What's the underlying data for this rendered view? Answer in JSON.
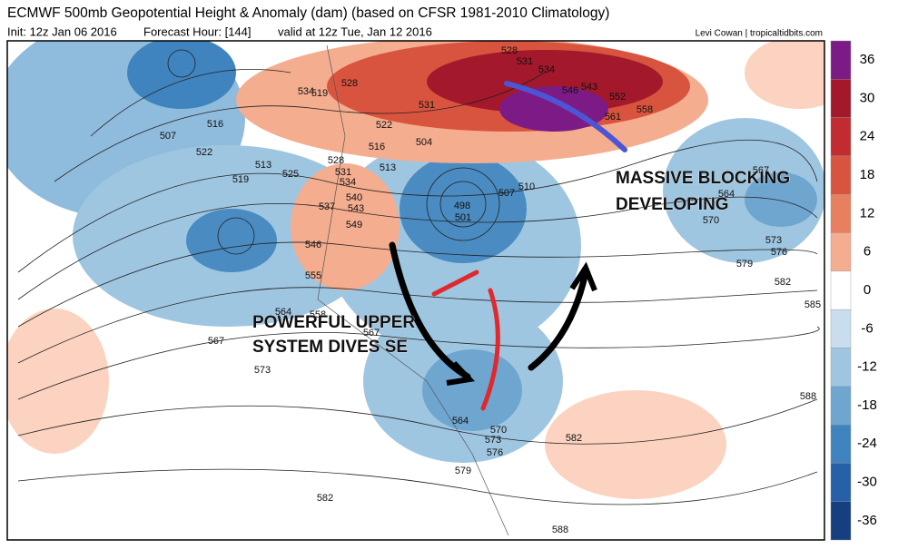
{
  "header": {
    "title": "ECMWF 500mb Geopotential Height & Anomaly (dam) (based on CFSR 1981-2010 Climatology)",
    "init": "Init: 12z Jan 06 2016",
    "forecast_hour": "Forecast Hour: [144]",
    "valid": "valid at 12z Tue, Jan 12 2016",
    "credit": "Levi Cowan | tropicaltidbits.com"
  },
  "colorbar": {
    "ticks": [
      36,
      30,
      24,
      18,
      12,
      6,
      0,
      -6,
      -12,
      -18,
      -24,
      -30,
      -36
    ],
    "colors": [
      "#7d1b86",
      "#a3182b",
      "#c22c30",
      "#d9543f",
      "#e8805f",
      "#f4ad8f",
      "#ffffff",
      "#c9ddee",
      "#9fc6e1",
      "#6ea6d0",
      "#3f84be",
      "#2660a6",
      "#163f80"
    ]
  },
  "annotations": {
    "upper_1": "POWERFUL UPPER",
    "upper_2": "SYSTEM DIVES SE",
    "block_1": "MASSIVE BLOCKING",
    "block_2": "DEVELOPING"
  },
  "contour_labels": [
    "534",
    "519",
    "528",
    "516",
    "507",
    "522",
    "519",
    "525",
    "513",
    "528",
    "531",
    "534",
    "540",
    "543",
    "537",
    "546",
    "549",
    "555",
    "564",
    "558",
    "567",
    "573",
    "567",
    "516",
    "522",
    "531",
    "504",
    "513",
    "498",
    "501",
    "507",
    "510",
    "528",
    "531",
    "534",
    "543",
    "546",
    "552",
    "561",
    "558",
    "567",
    "564",
    "570",
    "573",
    "576",
    "579",
    "582",
    "585",
    "588",
    "582",
    "570",
    "573",
    "576",
    "564",
    "579",
    "582",
    "588"
  ]
}
